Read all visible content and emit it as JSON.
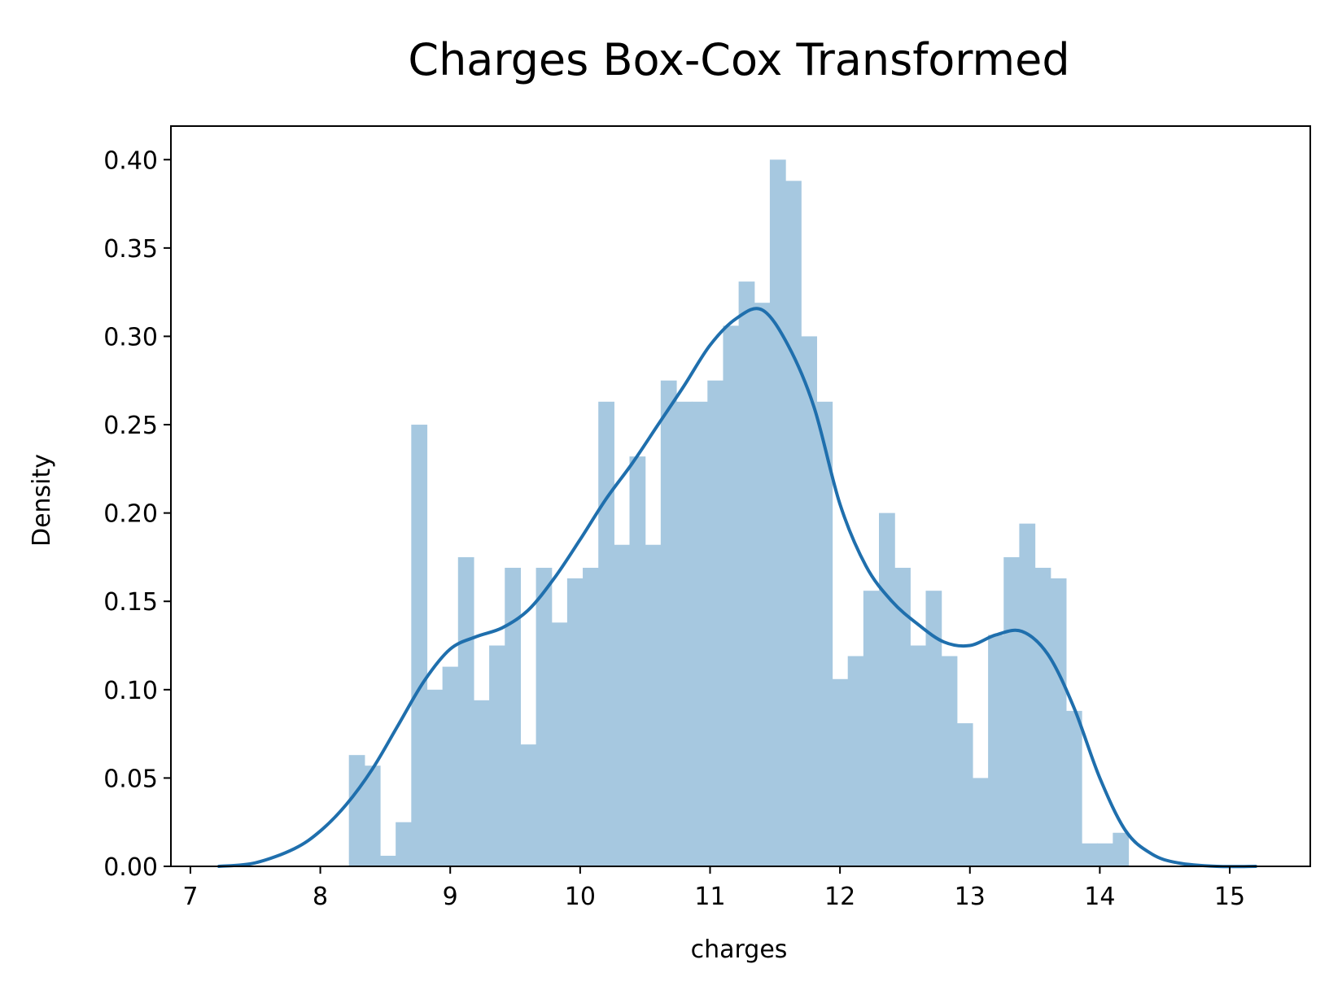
{
  "chart_data": {
    "type": "bar",
    "title": "Charges Box-Cox Transformed",
    "xlabel": "charges",
    "ylabel": "Density",
    "xlim": [
      6.85,
      15.62
    ],
    "ylim": [
      0,
      0.419
    ],
    "grid": false,
    "x_ticks": [
      7,
      8,
      9,
      10,
      11,
      12,
      13,
      14,
      15
    ],
    "x_tick_labels": [
      "7",
      "8",
      "9",
      "10",
      "11",
      "12",
      "13",
      "14",
      "15"
    ],
    "y_ticks": [
      0.0,
      0.05,
      0.1,
      0.15,
      0.2,
      0.25,
      0.3,
      0.35,
      0.4
    ],
    "y_tick_labels": [
      "0.00",
      "0.05",
      "0.10",
      "0.15",
      "0.20",
      "0.25",
      "0.30",
      "0.35",
      "0.40"
    ],
    "colors": {
      "bar": "#a6c8e0",
      "kde": "#1f6fad"
    },
    "histogram": {
      "bin_start": 8.22,
      "bin_width": 0.12,
      "values": [
        0.063,
        0.057,
        0.006,
        0.025,
        0.25,
        0.1,
        0.113,
        0.175,
        0.094,
        0.125,
        0.169,
        0.069,
        0.169,
        0.138,
        0.163,
        0.169,
        0.263,
        0.182,
        0.232,
        0.182,
        0.275,
        0.263,
        0.263,
        0.275,
        0.306,
        0.331,
        0.319,
        0.4,
        0.388,
        0.3,
        0.263,
        0.106,
        0.119,
        0.156,
        0.2,
        0.169,
        0.125,
        0.156,
        0.119,
        0.081,
        0.05,
        0.131,
        0.175,
        0.194,
        0.169,
        0.163,
        0.088,
        0.013,
        0.013,
        0.019
      ]
    },
    "kde": {
      "x": [
        7.22,
        7.5,
        7.8,
        8.0,
        8.2,
        8.4,
        8.6,
        8.8,
        9.0,
        9.2,
        9.4,
        9.6,
        9.8,
        10.0,
        10.2,
        10.4,
        10.6,
        10.8,
        11.0,
        11.2,
        11.4,
        11.6,
        11.8,
        12.0,
        12.2,
        12.4,
        12.6,
        12.8,
        13.0,
        13.2,
        13.4,
        13.6,
        13.8,
        14.0,
        14.2,
        14.4,
        14.6,
        14.9,
        15.2
      ],
      "y": [
        0.0,
        0.002,
        0.01,
        0.02,
        0.035,
        0.055,
        0.08,
        0.105,
        0.123,
        0.13,
        0.135,
        0.145,
        0.163,
        0.185,
        0.208,
        0.228,
        0.25,
        0.272,
        0.295,
        0.31,
        0.315,
        0.295,
        0.26,
        0.205,
        0.17,
        0.15,
        0.137,
        0.127,
        0.125,
        0.131,
        0.133,
        0.12,
        0.09,
        0.05,
        0.02,
        0.007,
        0.002,
        0.0,
        0.0
      ]
    }
  }
}
